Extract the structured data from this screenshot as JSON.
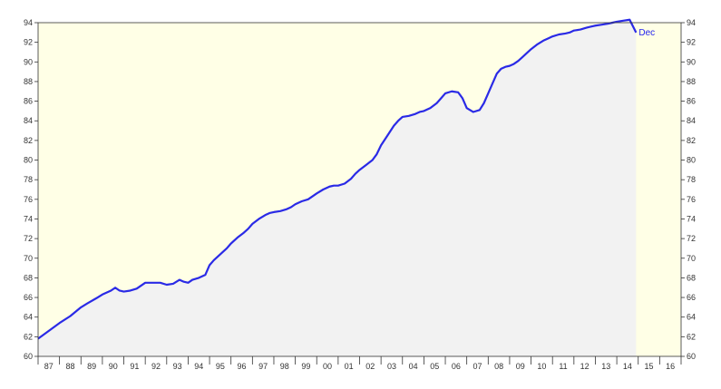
{
  "chart_data": {
    "type": "area",
    "title": "",
    "xlabel": "",
    "ylabel": "",
    "ylim": [
      60,
      94
    ],
    "xlim": [
      1987,
      2017
    ],
    "grid": false,
    "x_ticks": [
      "87",
      "88",
      "89",
      "90",
      "91",
      "92",
      "93",
      "94",
      "95",
      "96",
      "97",
      "98",
      "99",
      "00",
      "01",
      "02",
      "03",
      "04",
      "05",
      "06",
      "07",
      "08",
      "09",
      "10",
      "11",
      "12",
      "13",
      "14",
      "15",
      "16"
    ],
    "y_ticks": [
      "60",
      "62",
      "64",
      "66",
      "68",
      "70",
      "72",
      "74",
      "76",
      "78",
      "80",
      "82",
      "84",
      "86",
      "88",
      "90",
      "92",
      "94"
    ],
    "end_label": "Dec",
    "colors": {
      "line": "#2a2ae6",
      "area_fill": "#f2f2f2",
      "plot_background": "#ffffe6",
      "axis": "#333333"
    },
    "series": [
      {
        "x": [
          1987.0,
          1987.5,
          1988.0,
          1988.5,
          1989.0,
          1989.3,
          1989.7,
          1990.0,
          1990.4,
          1990.6,
          1990.8,
          1991.0,
          1991.3,
          1991.6,
          1992.0,
          1992.3,
          1992.7,
          1993.0,
          1993.3,
          1993.6,
          1993.8,
          1994.0,
          1994.2,
          1994.5,
          1994.8,
          1995.0,
          1995.2,
          1995.5,
          1995.8,
          1996.0,
          1996.3,
          1996.6,
          1996.8,
          1997.0,
          1997.3,
          1997.6,
          1997.8,
          1998.0,
          1998.3,
          1998.6,
          1998.8,
          1999.0,
          1999.3,
          1999.6,
          1999.8,
          2000.0,
          2000.3,
          2000.6,
          2000.8,
          2001.0,
          2001.3,
          2001.6,
          2001.8,
          2002.0,
          2002.3,
          2002.6,
          2002.8,
          2003.0,
          2003.3,
          2003.6,
          2003.8,
          2004.0,
          2004.3,
          2004.6,
          2004.8,
          2005.0,
          2005.3,
          2005.6,
          2005.8,
          2006.0,
          2006.3,
          2006.6,
          2006.8,
          2007.0,
          2007.3,
          2007.6,
          2007.8,
          2008.0,
          2008.2,
          2008.4,
          2008.6,
          2008.8,
          2009.0,
          2009.2,
          2009.4,
          2009.6,
          2009.8,
          2010.0,
          2010.3,
          2010.6,
          2010.8,
          2011.0,
          2011.3,
          2011.6,
          2011.8,
          2012.0,
          2012.3,
          2012.6,
          2012.8,
          2013.0,
          2013.3,
          2013.6,
          2013.8,
          2014.0,
          2014.3,
          2014.6,
          2014.9
        ],
        "values": [
          61.8,
          62.6,
          63.4,
          64.1,
          65.0,
          65.4,
          65.9,
          66.3,
          66.7,
          67.0,
          66.7,
          66.6,
          66.7,
          66.9,
          67.5,
          67.5,
          67.5,
          67.3,
          67.4,
          67.8,
          67.6,
          67.5,
          67.8,
          68.0,
          68.3,
          69.3,
          69.8,
          70.4,
          71.0,
          71.5,
          72.1,
          72.6,
          73.0,
          73.5,
          74.0,
          74.4,
          74.6,
          74.7,
          74.8,
          75.0,
          75.2,
          75.5,
          75.8,
          76.0,
          76.3,
          76.6,
          77.0,
          77.3,
          77.4,
          77.4,
          77.6,
          78.1,
          78.6,
          79.0,
          79.5,
          80.0,
          80.6,
          81.5,
          82.5,
          83.5,
          84.0,
          84.4,
          84.5,
          84.7,
          84.9,
          85.0,
          85.3,
          85.8,
          86.3,
          86.8,
          87.0,
          86.9,
          86.3,
          85.3,
          84.9,
          85.1,
          85.8,
          86.8,
          87.8,
          88.8,
          89.3,
          89.5,
          89.6,
          89.8,
          90.1,
          90.5,
          90.9,
          91.3,
          91.8,
          92.2,
          92.4,
          92.6,
          92.8,
          92.9,
          93.0,
          93.2,
          93.3,
          93.5,
          93.6,
          93.7,
          93.8,
          93.9,
          94.0,
          94.1,
          94.2,
          94.3,
          93.0
        ]
      }
    ]
  }
}
